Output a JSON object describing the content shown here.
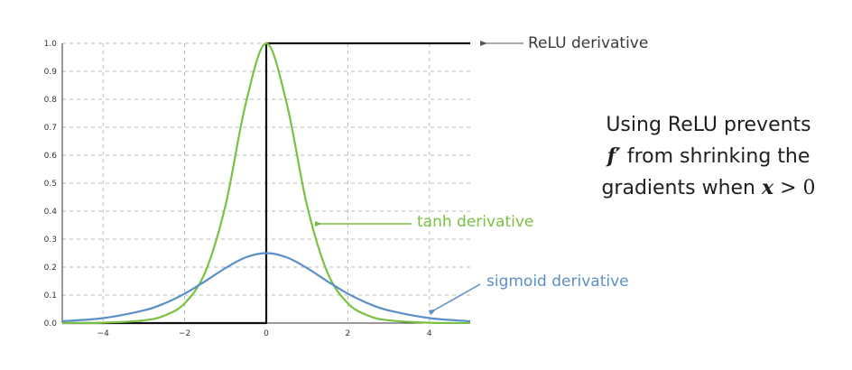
{
  "chart_data": {
    "type": "line",
    "xlim": [
      -5,
      5
    ],
    "ylim": [
      0,
      1.0
    ],
    "x_ticks": [
      -4,
      -2,
      0,
      2,
      4
    ],
    "x_tick_labels": [
      "−4",
      "−2",
      "0",
      "2",
      "4"
    ],
    "y_ticks": [
      0.0,
      0.1,
      0.2,
      0.3,
      0.4,
      0.5,
      0.6,
      0.7,
      0.8,
      0.9,
      1.0
    ],
    "y_tick_labels": [
      "0.0",
      "0.1",
      "0.2",
      "0.3",
      "0.4",
      "0.5",
      "0.6",
      "0.7",
      "0.8",
      "0.9",
      "1.0"
    ],
    "grid": true,
    "series": [
      {
        "name": "ReLU derivative",
        "color": "#111111",
        "x": [
          -5,
          -4,
          -3,
          -2,
          -1,
          0,
          0,
          1,
          2,
          3,
          4,
          5
        ],
        "y": [
          0,
          0,
          0,
          0,
          0,
          0,
          1,
          1,
          1,
          1,
          1,
          1
        ]
      },
      {
        "name": "tanh derivative",
        "color": "#7ac143",
        "x": [
          -5,
          -4,
          -3,
          -2.5,
          -2,
          -1.5,
          -1,
          -0.5,
          0,
          0.5,
          1,
          1.5,
          2,
          2.5,
          3,
          4,
          5
        ],
        "y": [
          0.0002,
          0.0013,
          0.0099,
          0.0266,
          0.0707,
          0.1807,
          0.42,
          0.7864,
          1.0,
          0.7864,
          0.42,
          0.1807,
          0.0707,
          0.0266,
          0.0099,
          0.0013,
          0.0002
        ]
      },
      {
        "name": "sigmoid derivative",
        "color": "#5b8fc8",
        "x": [
          -5,
          -4,
          -3,
          -2.5,
          -2,
          -1.5,
          -1,
          -0.5,
          0,
          0.5,
          1,
          1.5,
          2,
          2.5,
          3,
          4,
          5
        ],
        "y": [
          0.0066,
          0.0177,
          0.0452,
          0.0701,
          0.105,
          0.1491,
          0.1966,
          0.235,
          0.25,
          0.235,
          0.1966,
          0.1491,
          0.105,
          0.0701,
          0.0452,
          0.0177,
          0.0066
        ]
      }
    ],
    "annotations": {
      "relu": "ReLU derivative",
      "tanh": "tanh derivative",
      "sigmoid": "sigmoid derivative"
    }
  },
  "note": {
    "line1": "Using ReLU prevents",
    "line2_math": "f′",
    "line2_text": "from shrinking the",
    "line3_text": "gradients when",
    "line3_var": "x",
    "line3_op": " > 0"
  }
}
